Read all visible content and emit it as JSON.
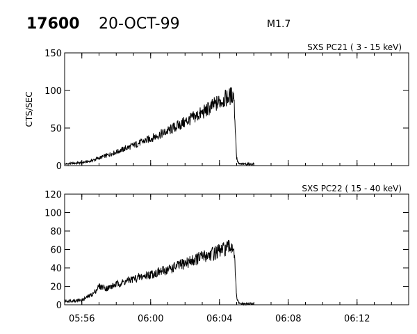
{
  "header": {
    "event_number": "17600",
    "date": "20-OCT-99",
    "flare_class": "M1.7"
  },
  "chart_data": [
    {
      "type": "line",
      "title": "SXS PC21  (  3 - 15 keV)",
      "ylabel": "CTS/SEC",
      "xlabel": "",
      "ylim": [
        0,
        150
      ],
      "yticks": [
        0,
        50,
        100,
        150
      ],
      "xlim": [
        "05:55:00",
        "06:15:00"
      ],
      "xticks": [
        "05:56",
        "06:00",
        "06:04",
        "06:08",
        "06:12"
      ],
      "show_xtick_labels": false,
      "grid": false,
      "series": [
        {
          "x": [
            "05:55:00",
            "05:56:00",
            "05:56:30",
            "05:57:00",
            "05:58:00",
            "05:59:00",
            "06:00:00",
            "06:01:00",
            "06:02:00",
            "06:03:00",
            "06:04:00",
            "06:04:50",
            "06:05:00",
            "06:05:05",
            "06:05:10",
            "06:06:00"
          ],
          "y": [
            2,
            4,
            6,
            10,
            18,
            27,
            36,
            46,
            58,
            70,
            85,
            95,
            10,
            4,
            2,
            2
          ]
        }
      ]
    },
    {
      "type": "line",
      "title": "SXS PC22  ( 15 - 40 keV)",
      "ylabel": "",
      "xlabel": "",
      "ylim": [
        0,
        120
      ],
      "yticks": [
        0,
        20,
        40,
        60,
        80,
        100,
        120
      ],
      "xlim": [
        "05:55:00",
        "06:15:00"
      ],
      "xticks": [
        "05:56",
        "06:00",
        "06:04",
        "06:08",
        "06:12"
      ],
      "show_xtick_labels": true,
      "grid": false,
      "series": [
        {
          "x": [
            "05:55:00",
            "05:56:00",
            "05:56:40",
            "05:57:00",
            "05:57:30",
            "05:58:00",
            "05:59:00",
            "06:00:00",
            "06:01:00",
            "06:02:00",
            "06:03:00",
            "06:04:00",
            "06:04:50",
            "06:05:00",
            "06:05:05",
            "06:05:10",
            "06:06:00"
          ],
          "y": [
            4,
            5,
            12,
            20,
            18,
            22,
            28,
            33,
            38,
            45,
            52,
            58,
            64,
            8,
            3,
            1,
            1
          ]
        }
      ]
    }
  ]
}
